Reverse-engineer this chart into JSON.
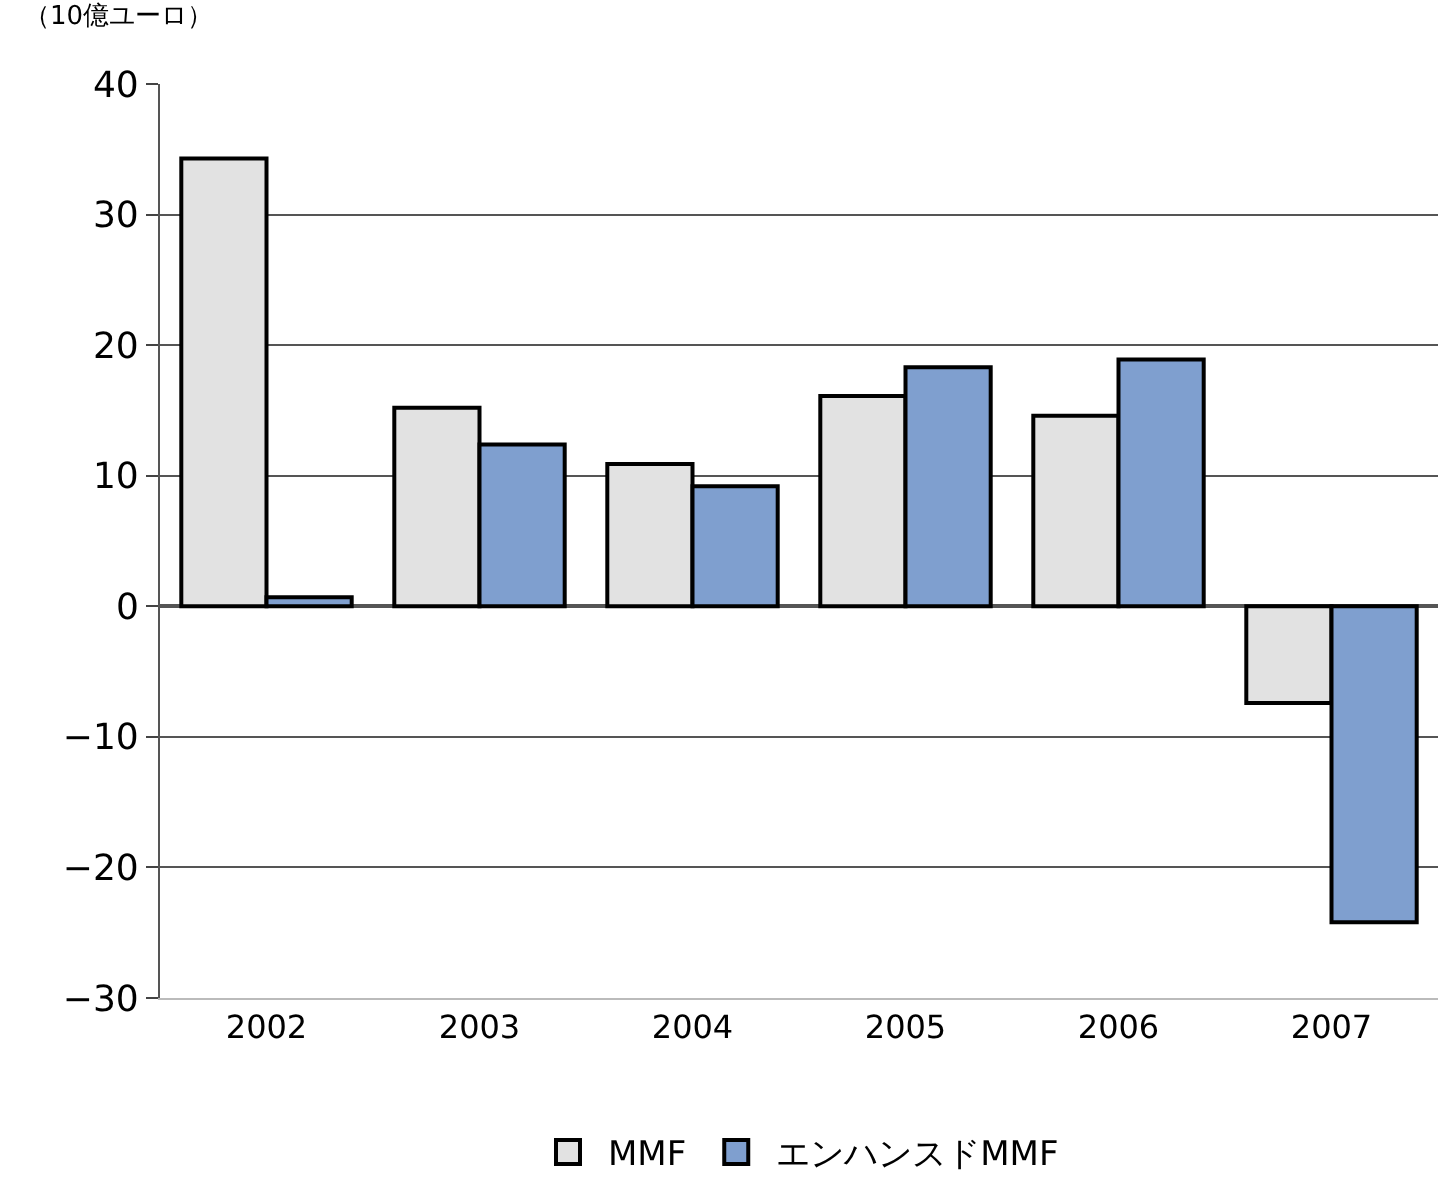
{
  "chart_data": {
    "type": "bar",
    "ylabel": "（10億ユーロ）",
    "categories": [
      "2002",
      "2003",
      "2004",
      "2005",
      "2006",
      "2007"
    ],
    "series": [
      {
        "name": "MMF",
        "color": "#e2e2e2",
        "values": [
          34.3,
          15.2,
          10.9,
          16.1,
          14.6,
          -7.4
        ]
      },
      {
        "name": "エンハンスドMMF",
        "color": "#7f9fcf",
        "values": [
          0.7,
          12.4,
          9.2,
          18.3,
          18.9,
          -24.2
        ]
      }
    ],
    "ylim": [
      -30,
      40
    ],
    "yticks": [
      -30,
      -20,
      -10,
      0,
      10,
      20,
      30,
      40
    ],
    "grid": "y",
    "legend": "bottom"
  }
}
